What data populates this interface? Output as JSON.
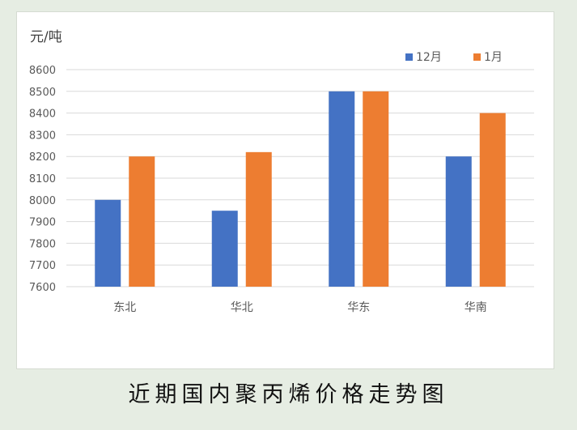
{
  "caption": "近期国内聚丙烯价格走势图",
  "colors": {
    "series_12": "#4472c4",
    "series_1": "#ed7d31",
    "grid": "#d9d9d9",
    "text": "#595959",
    "axis_unit": "#404040"
  },
  "chart_data": {
    "type": "bar",
    "unit_label": "元/吨",
    "categories": [
      "东北",
      "华北",
      "华东",
      "华南"
    ],
    "series": [
      {
        "name": "12月",
        "values": [
          8000,
          7950,
          8500,
          8200
        ]
      },
      {
        "name": "1月",
        "values": [
          8200,
          8220,
          8500,
          8400
        ]
      }
    ],
    "ylim": [
      7600,
      8600
    ],
    "yticks": [
      "7600",
      "7700",
      "7800",
      "7900",
      "8000",
      "8100",
      "8200",
      "8300",
      "8400",
      "8500",
      "8600"
    ],
    "grid": true,
    "legend_position": "top-right"
  }
}
